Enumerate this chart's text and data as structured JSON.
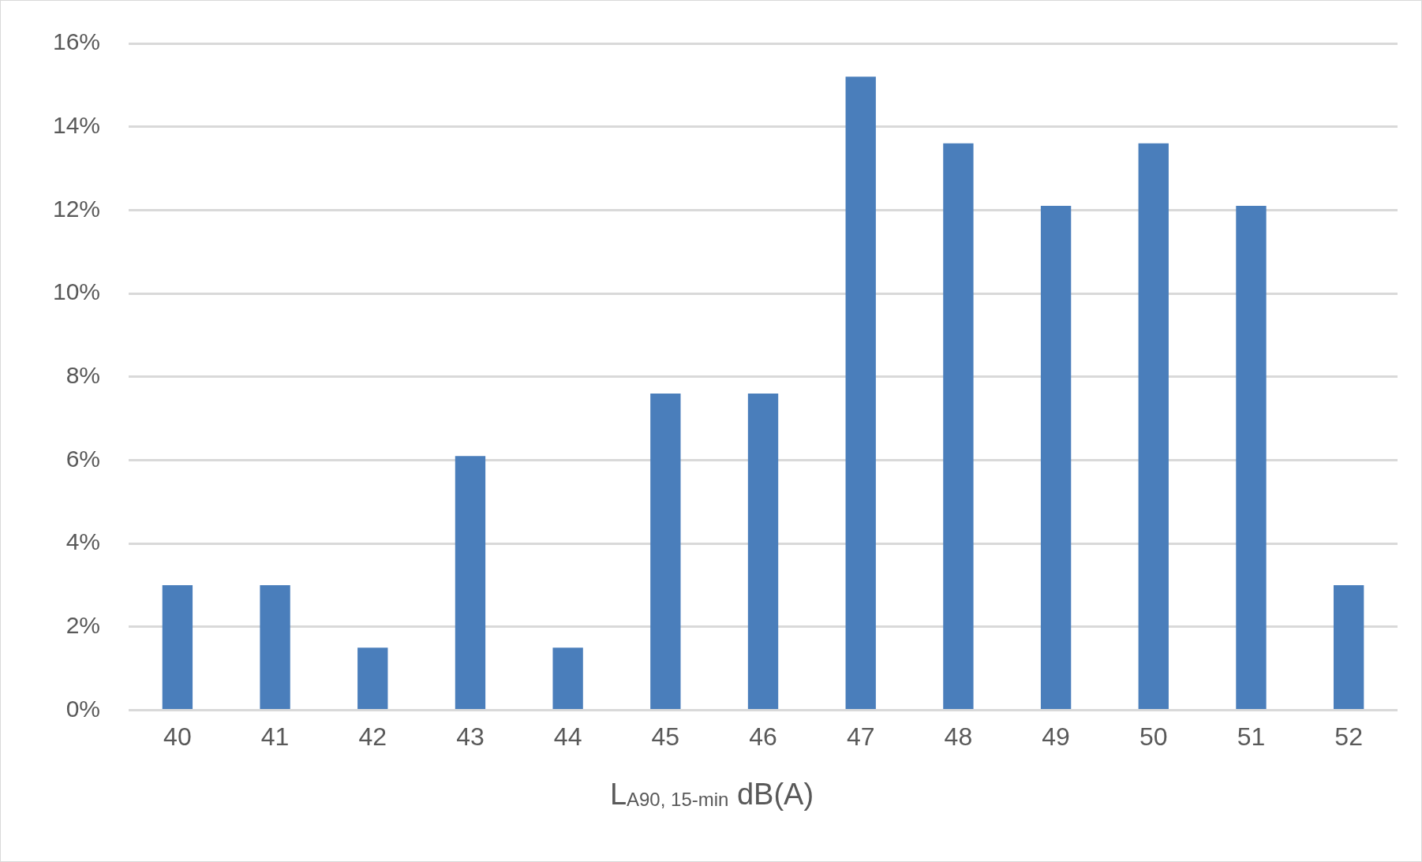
{
  "chart_data": {
    "type": "bar",
    "xlabel": "L$_{A90, 15-min}$ dB(A)",
    "categories": [
      "40",
      "41",
      "42",
      "43",
      "44",
      "45",
      "46",
      "47",
      "48",
      "49",
      "50",
      "51",
      "52"
    ],
    "values": [
      3.0,
      3.0,
      1.5,
      6.1,
      1.5,
      7.6,
      7.6,
      15.2,
      13.6,
      12.1,
      13.6,
      12.1,
      3.0
    ],
    "color": "#4a7ebb",
    "ylim": [
      0,
      16
    ],
    "yticks": [
      {
        "value": 0,
        "label": "0%"
      },
      {
        "value": 2,
        "label": "2%"
      },
      {
        "value": 4,
        "label": "4%"
      },
      {
        "value": 6,
        "label": "6%"
      },
      {
        "value": 8,
        "label": "8%"
      },
      {
        "value": 10,
        "label": "10%"
      },
      {
        "value": 12,
        "label": "12%"
      },
      {
        "value": 14,
        "label": "14%"
      },
      {
        "value": 16,
        "label": "16%"
      }
    ],
    "grid": "y"
  }
}
